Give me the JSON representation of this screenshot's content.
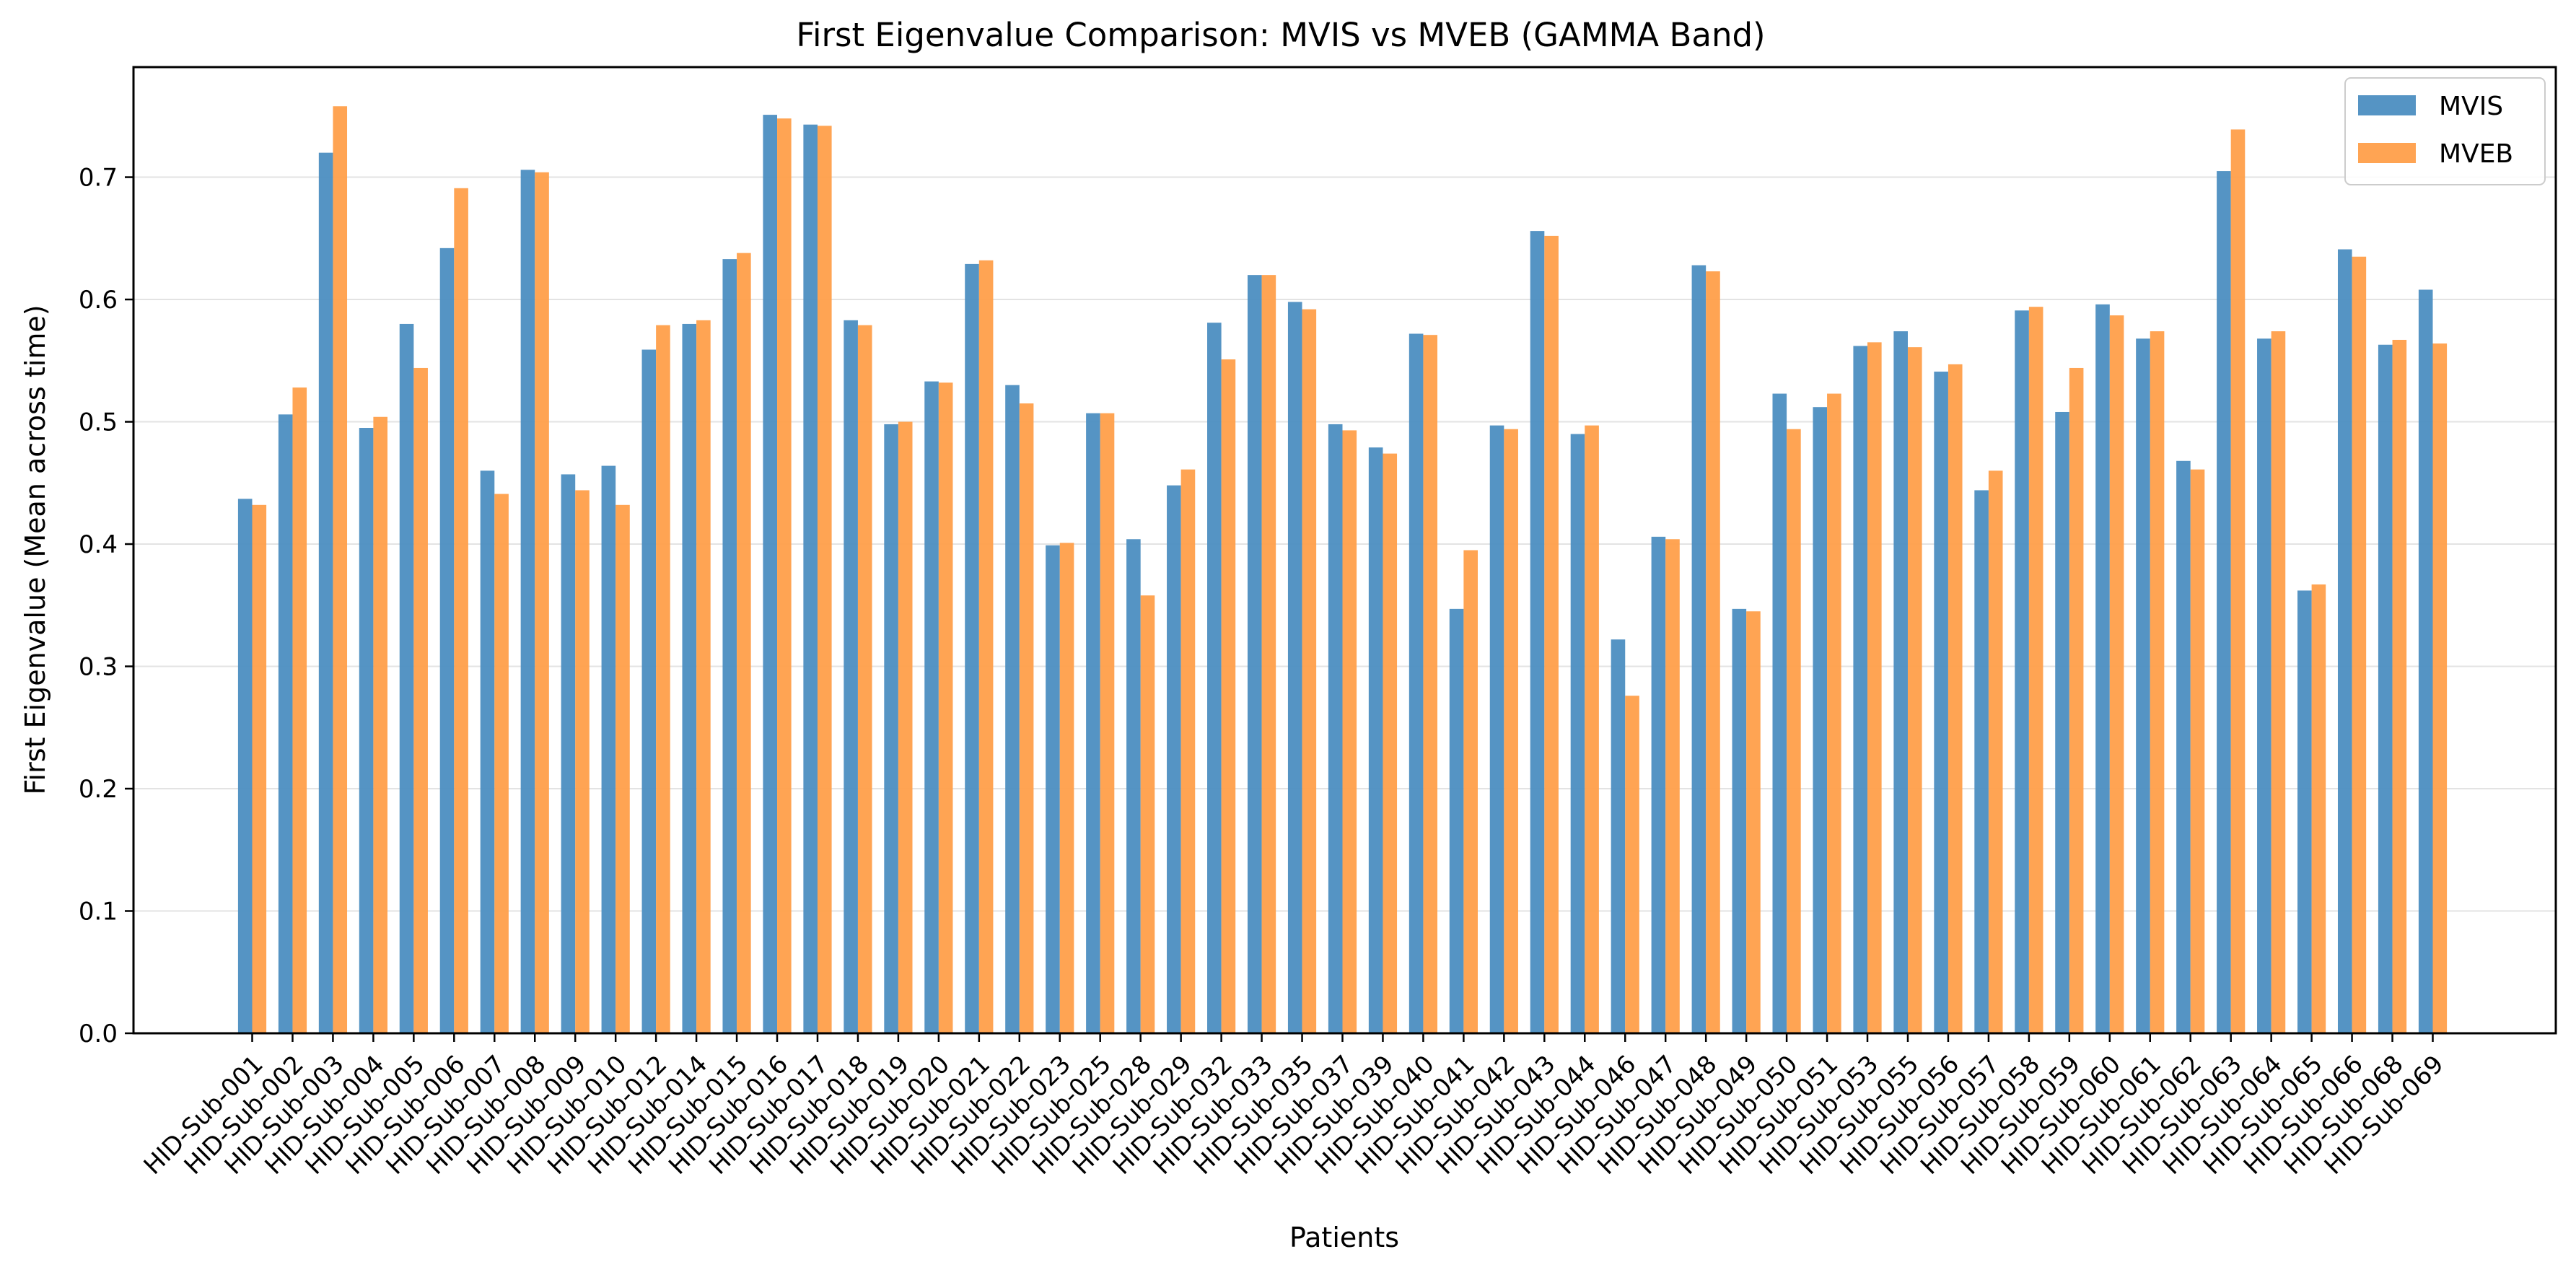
{
  "chart_data": {
    "type": "bar",
    "title": "First Eigenvalue Comparison: MVIS vs MVEB (GAMMA Band)",
    "xlabel": "Patients",
    "ylabel": "First Eigenvalue (Mean across time)",
    "ylim": [
      0,
      0.79
    ],
    "yticks": [
      "0.0",
      "0.1",
      "0.2",
      "0.3",
      "0.4",
      "0.5",
      "0.6",
      "0.7"
    ],
    "grid": "horizontal",
    "legend_position": "top-right",
    "categories": [
      "HID-Sub-001",
      "HID-Sub-002",
      "HID-Sub-003",
      "HID-Sub-004",
      "HID-Sub-005",
      "HID-Sub-006",
      "HID-Sub-007",
      "HID-Sub-008",
      "HID-Sub-009",
      "HID-Sub-010",
      "HID-Sub-012",
      "HID-Sub-014",
      "HID-Sub-015",
      "HID-Sub-016",
      "HID-Sub-017",
      "HID-Sub-018",
      "HID-Sub-019",
      "HID-Sub-020",
      "HID-Sub-021",
      "HID-Sub-022",
      "HID-Sub-023",
      "HID-Sub-025",
      "HID-Sub-028",
      "HID-Sub-029",
      "HID-Sub-032",
      "HID-Sub-033",
      "HID-Sub-035",
      "HID-Sub-037",
      "HID-Sub-039",
      "HID-Sub-040",
      "HID-Sub-041",
      "HID-Sub-042",
      "HID-Sub-043",
      "HID-Sub-044",
      "HID-Sub-046",
      "HID-Sub-047",
      "HID-Sub-048",
      "HID-Sub-049",
      "HID-Sub-050",
      "HID-Sub-051",
      "HID-Sub-053",
      "HID-Sub-055",
      "HID-Sub-056",
      "HID-Sub-057",
      "HID-Sub-058",
      "HID-Sub-059",
      "HID-Sub-060",
      "HID-Sub-061",
      "HID-Sub-062",
      "HID-Sub-063",
      "HID-Sub-064",
      "HID-Sub-065",
      "HID-Sub-066",
      "HID-Sub-068",
      "HID-Sub-069"
    ],
    "series": [
      {
        "name": "MVIS",
        "color": "#4c8ec1",
        "values": [
          0.437,
          0.506,
          0.72,
          0.495,
          0.58,
          0.642,
          0.46,
          0.706,
          0.457,
          0.464,
          0.559,
          0.58,
          0.633,
          0.751,
          0.743,
          0.583,
          0.498,
          0.533,
          0.629,
          0.53,
          0.399,
          0.507,
          0.404,
          0.448,
          0.581,
          0.62,
          0.598,
          0.498,
          0.479,
          0.572,
          0.347,
          0.497,
          0.656,
          0.49,
          0.322,
          0.406,
          0.628,
          0.347,
          0.523,
          0.512,
          0.562,
          0.574,
          0.541,
          0.444,
          0.591,
          0.508,
          0.596,
          0.568,
          0.468,
          0.705,
          0.568,
          0.362,
          0.641,
          0.563,
          0.608
        ]
      },
      {
        "name": "MVEB",
        "color": "#ff9f4a",
        "values": [
          0.432,
          0.528,
          0.758,
          0.504,
          0.544,
          0.691,
          0.441,
          0.704,
          0.444,
          0.432,
          0.579,
          0.583,
          0.638,
          0.748,
          0.742,
          0.579,
          0.5,
          0.532,
          0.632,
          0.515,
          0.401,
          0.507,
          0.358,
          0.461,
          0.551,
          0.62,
          0.592,
          0.493,
          0.474,
          0.571,
          0.395,
          0.494,
          0.652,
          0.497,
          0.276,
          0.404,
          0.623,
          0.345,
          0.494,
          0.523,
          0.565,
          0.561,
          0.547,
          0.46,
          0.594,
          0.544,
          0.587,
          0.574,
          0.461,
          0.739,
          0.574,
          0.367,
          0.635,
          0.567,
          0.564
        ]
      }
    ]
  }
}
